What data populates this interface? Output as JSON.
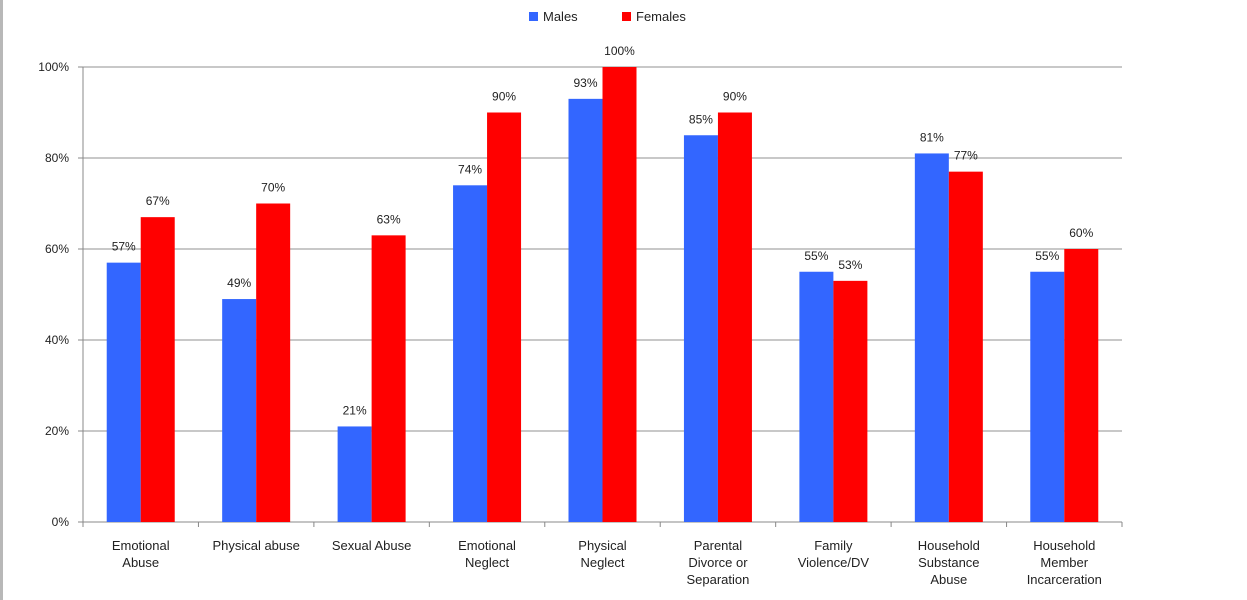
{
  "chart_data": {
    "type": "bar",
    "categories": [
      [
        "Emotional",
        "Abuse"
      ],
      [
        "Physical abuse"
      ],
      [
        "Sexual Abuse"
      ],
      [
        "Emotional",
        "Neglect"
      ],
      [
        "Physical",
        "Neglect"
      ],
      [
        "Parental",
        "Divorce or",
        "Separation"
      ],
      [
        "Family",
        "Violence/DV"
      ],
      [
        "Household",
        "Substance",
        "Abuse"
      ],
      [
        "Household",
        "Member",
        "Incarceration"
      ]
    ],
    "series": [
      {
        "name": "Males",
        "color": "#3366ff",
        "values": [
          57,
          49,
          21,
          74,
          93,
          85,
          55,
          81,
          55
        ],
        "labels": [
          "57%",
          "49%",
          "21%",
          "74%",
          "93%",
          "85%",
          "55%",
          "81%",
          "55%"
        ]
      },
      {
        "name": "Females",
        "color": "#ff0000",
        "values": [
          67,
          70,
          63,
          90,
          100,
          90,
          53,
          77,
          60
        ],
        "labels": [
          "67%",
          "70%",
          "63%",
          "90%",
          "100%",
          "90%",
          "53%",
          "77%",
          "60%"
        ]
      }
    ],
    "ylim": [
      0,
      100
    ],
    "yticks": [
      "0%",
      "20%",
      "40%",
      "60%",
      "80%",
      "100%"
    ],
    "grid": true,
    "legend_position": "top-center"
  }
}
